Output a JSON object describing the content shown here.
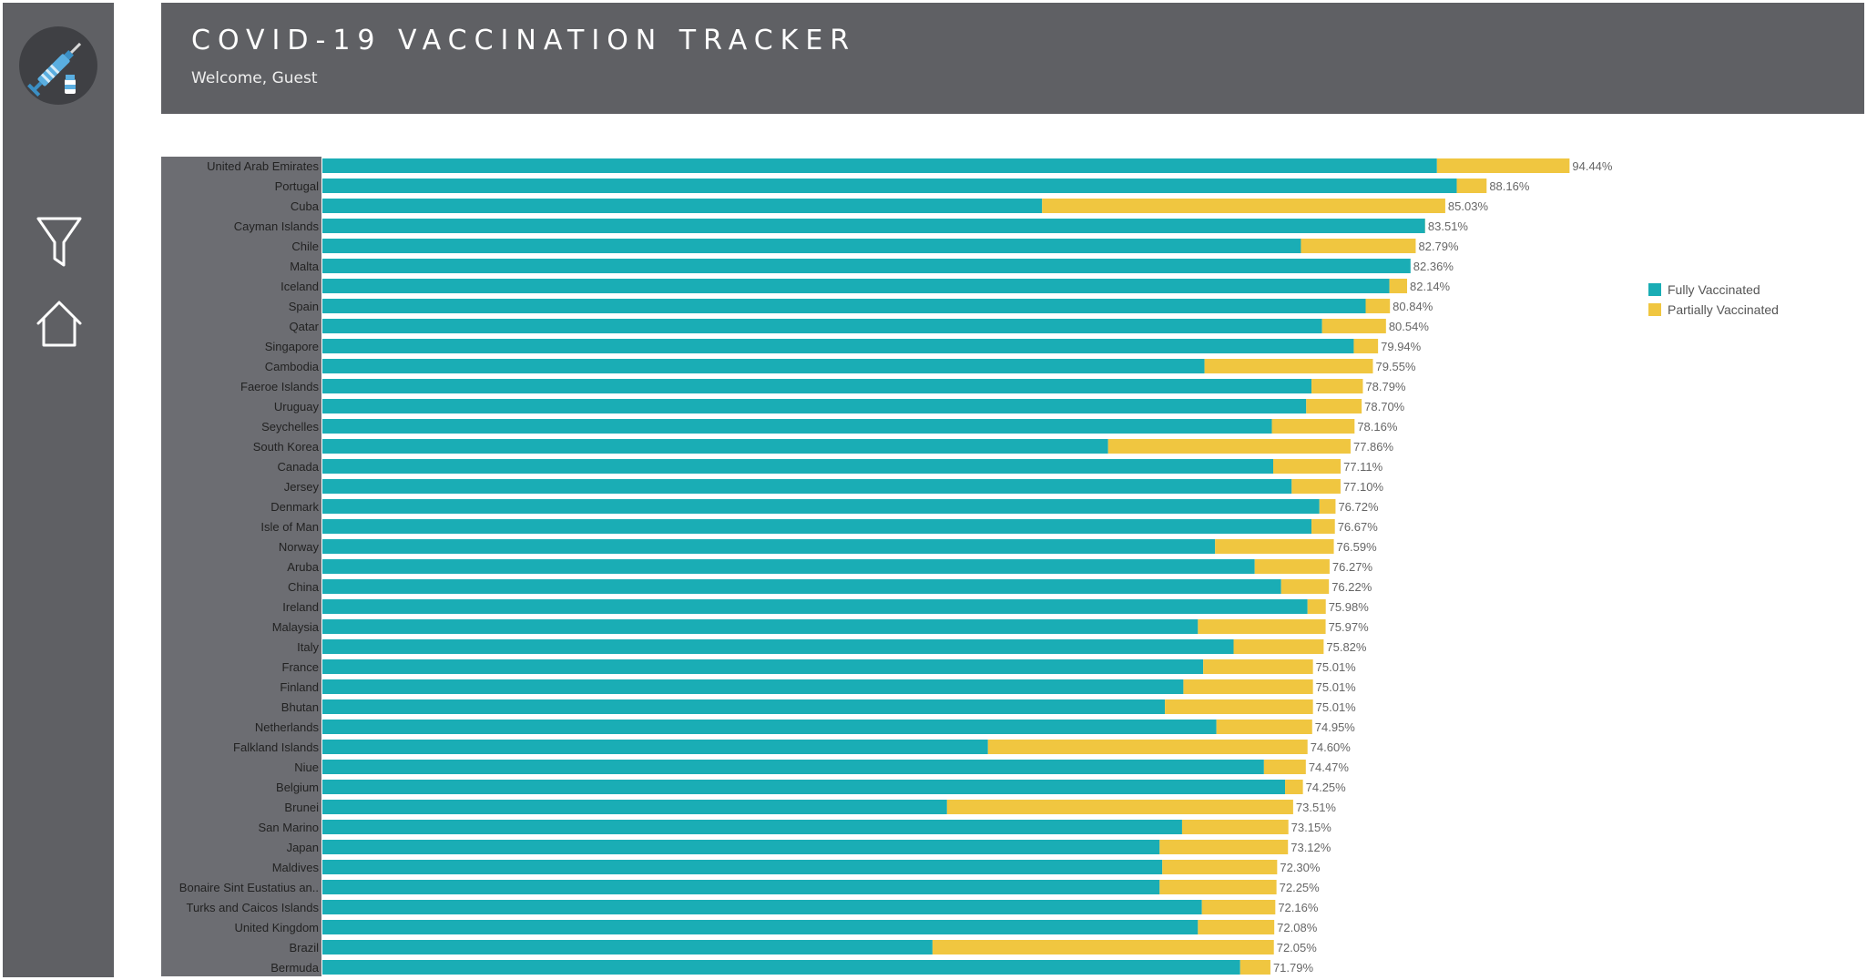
{
  "header": {
    "title": "COVID-19 VACCINATION TRACKER",
    "welcome": "Welcome, Guest"
  },
  "sidebar": {
    "logo_icon": "vaccine-syringe-icon",
    "items": [
      {
        "icon": "filter-icon"
      },
      {
        "icon": "home-icon"
      }
    ]
  },
  "colors": {
    "fully": "#1aadb5",
    "partially": "#f0c640",
    "panel": "#5f6064",
    "label_band": "#6c6d72"
  },
  "chart_data": {
    "type": "bar",
    "orientation": "horizontal",
    "stacked": true,
    "legend_position": "right",
    "series": [
      {
        "name": "Fully Vaccinated",
        "values": [
          84.4,
          85.9,
          54.5,
          83.5,
          74.1,
          82.4,
          80.8,
          79.0,
          75.7,
          78.1,
          66.8,
          74.9,
          74.5,
          71.9,
          59.5,
          72.0,
          73.4,
          75.5,
          74.9,
          67.6,
          70.6,
          72.6,
          74.6,
          66.3,
          69.0,
          66.7,
          65.2,
          63.8,
          67.7,
          50.4,
          71.3,
          72.9,
          47.3,
          65.1,
          63.4,
          63.6,
          63.4,
          66.6,
          66.3,
          46.2,
          69.5
        ],
        "color": "#1aadb5"
      },
      {
        "name": "Partially Vaccinated",
        "values": [
          10.04,
          2.26,
          30.53,
          0.01,
          8.69,
          0.0,
          1.34,
          1.84,
          4.84,
          1.84,
          12.75,
          3.89,
          4.2,
          6.26,
          18.36,
          5.11,
          3.7,
          1.22,
          1.77,
          8.99,
          5.67,
          3.62,
          1.38,
          9.67,
          6.82,
          8.31,
          9.81,
          11.21,
          7.25,
          24.2,
          3.17,
          1.35,
          26.21,
          8.05,
          9.72,
          8.7,
          8.85,
          5.56,
          5.78,
          25.85,
          2.29
        ],
        "color": "#f0c640"
      }
    ],
    "categories": [
      "United Arab Emirates",
      "Portugal",
      "Cuba",
      "Cayman Islands",
      "Chile",
      "Malta",
      "Iceland",
      "Spain",
      "Qatar",
      "Singapore",
      "Cambodia",
      "Faeroe Islands",
      "Uruguay",
      "Seychelles",
      "South Korea",
      "Canada",
      "Jersey",
      "Denmark",
      "Isle of Man",
      "Norway",
      "Aruba",
      "China",
      "Ireland",
      "Malaysia",
      "Italy",
      "France",
      "Finland",
      "Bhutan",
      "Netherlands",
      "Falkland Islands",
      "Niue",
      "Belgium",
      "Brunei",
      "San Marino",
      "Japan",
      "Maldives",
      "Bonaire Sint Eustatius an..",
      "Turks and Caicos Islands",
      "United Kingdom",
      "Brazil",
      "Bermuda"
    ],
    "data_labels": [
      "94.44%",
      "88.16%",
      "85.03%",
      "83.51%",
      "82.79%",
      "82.36%",
      "82.14%",
      "80.84%",
      "80.54%",
      "79.94%",
      "79.55%",
      "78.79%",
      "78.70%",
      "78.16%",
      "77.86%",
      "77.11%",
      "77.10%",
      "76.72%",
      "76.67%",
      "76.59%",
      "76.27%",
      "76.22%",
      "75.98%",
      "75.97%",
      "75.82%",
      "75.01%",
      "75.01%",
      "75.01%",
      "74.95%",
      "74.60%",
      "74.47%",
      "74.25%",
      "73.51%",
      "73.15%",
      "73.12%",
      "72.30%",
      "72.25%",
      "72.16%",
      "72.08%",
      "72.05%",
      "71.79%"
    ],
    "xlim": [
      0,
      100
    ]
  }
}
